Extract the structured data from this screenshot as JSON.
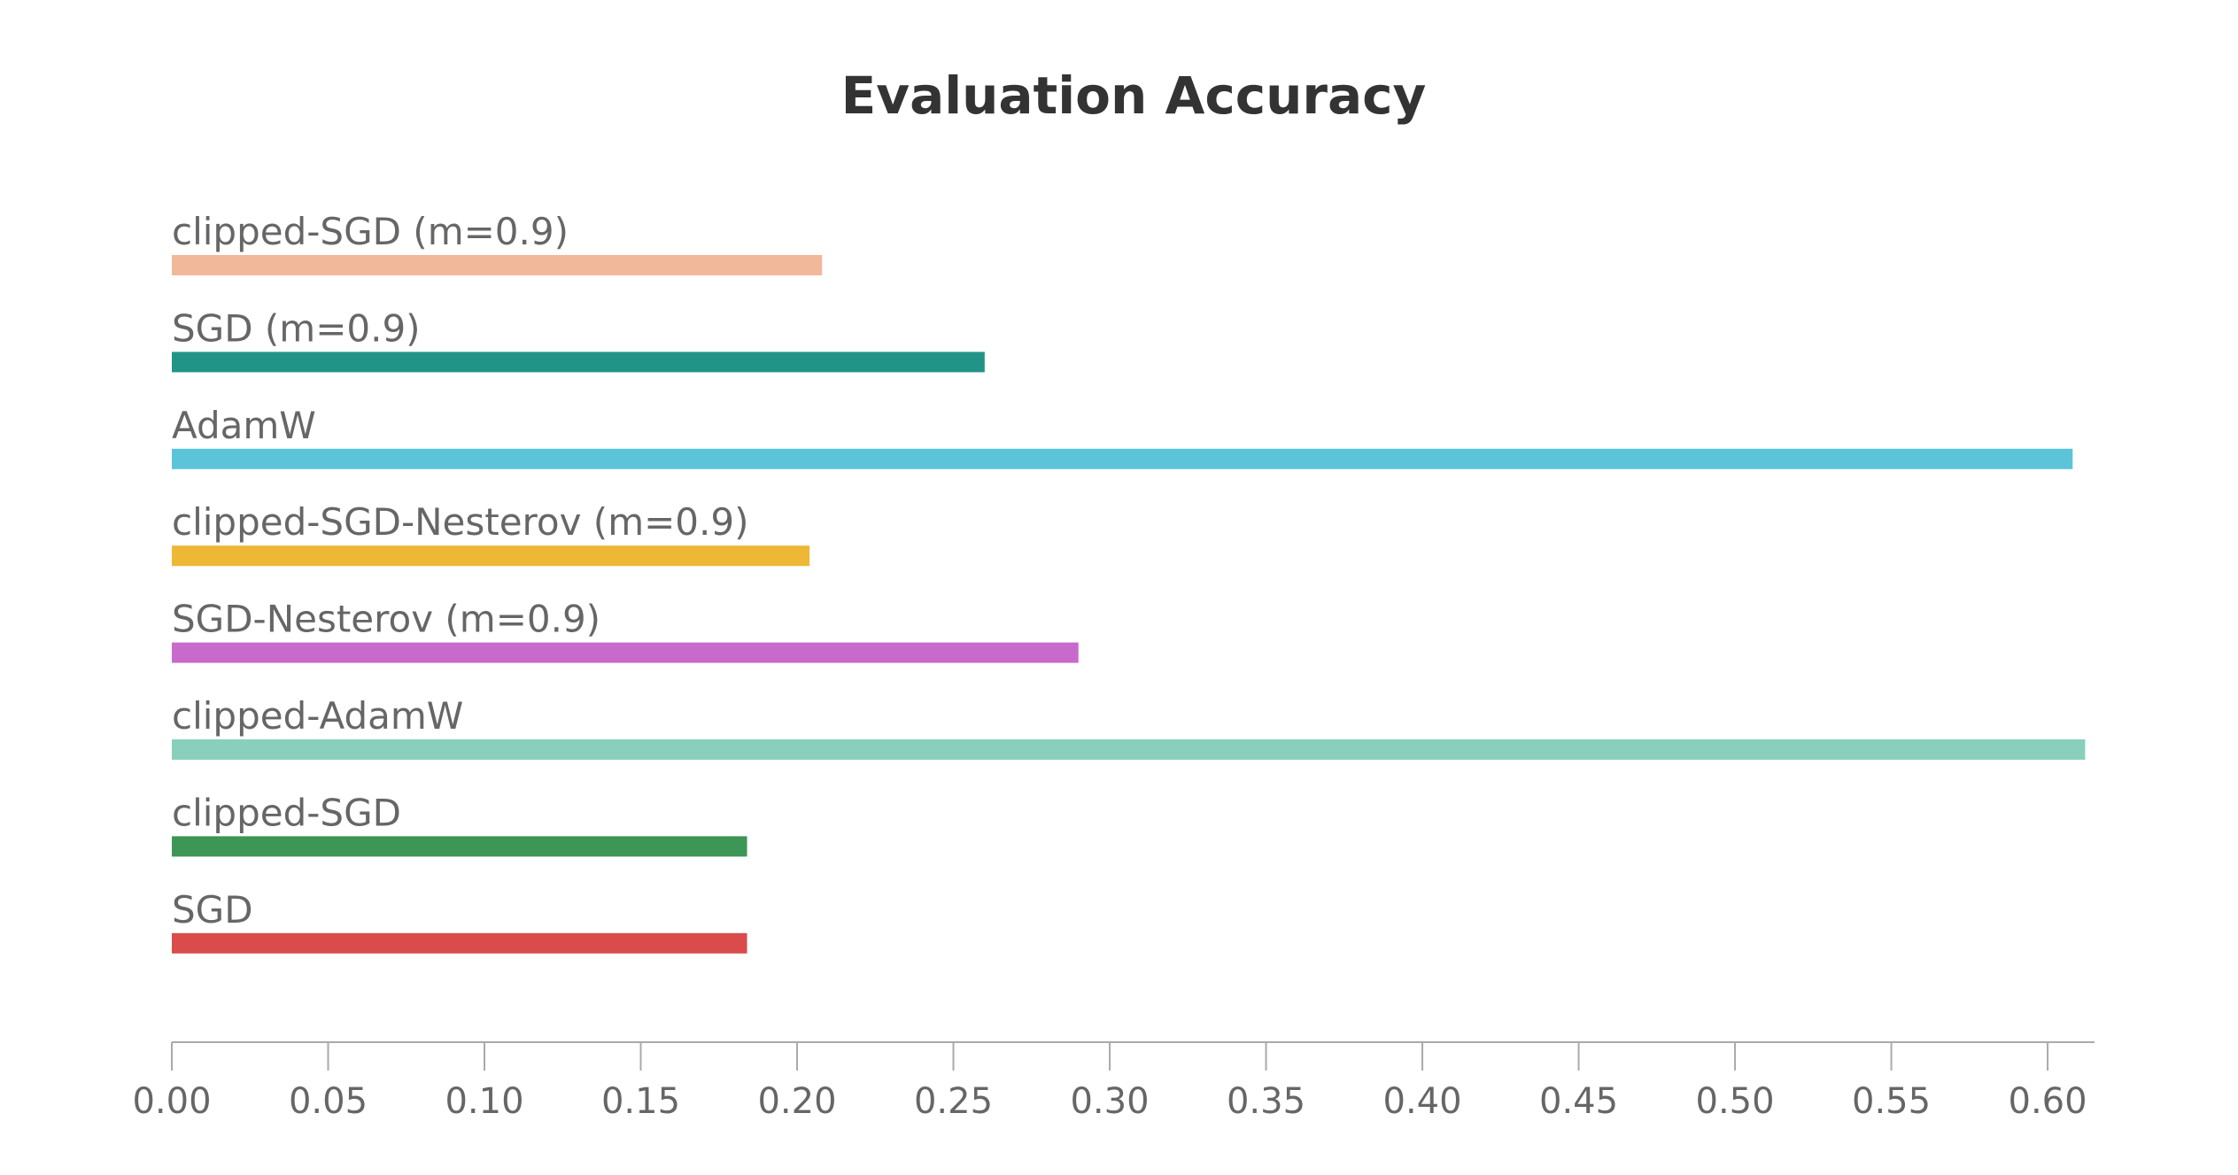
{
  "chart_data": {
    "type": "bar",
    "orientation": "horizontal",
    "title": "Evaluation Accuracy",
    "xlabel": "",
    "ylabel": "",
    "xlim": [
      0,
      0.615
    ],
    "grid": false,
    "legend": "none",
    "ticks": [
      "0.00",
      "0.05",
      "0.10",
      "0.15",
      "0.20",
      "0.25",
      "0.30",
      "0.35",
      "0.40",
      "0.45",
      "0.50",
      "0.55",
      "0.60"
    ],
    "tick_values": [
      0,
      0.05,
      0.1,
      0.15,
      0.2,
      0.25,
      0.3,
      0.35,
      0.4,
      0.45,
      0.5,
      0.55,
      0.6
    ],
    "bars": [
      {
        "label": "clipped-SGD (m=0.9)",
        "value": 0.208,
        "color": "#f2b89a"
      },
      {
        "label": "SGD (m=0.9)",
        "value": 0.26,
        "color": "#229487"
      },
      {
        "label": "AdamW",
        "value": 0.608,
        "color": "#5bc4d8"
      },
      {
        "label": "clipped-SGD-Nesterov (m=0.9)",
        "value": 0.204,
        "color": "#eeb735"
      },
      {
        "label": "SGD-Nesterov (m=0.9)",
        "value": 0.29,
        "color": "#c86acb"
      },
      {
        "label": "clipped-AdamW",
        "value": 0.612,
        "color": "#88d0bc"
      },
      {
        "label": "clipped-SGD",
        "value": 0.184,
        "color": "#3d9656"
      },
      {
        "label": "SGD",
        "value": 0.184,
        "color": "#da4b4b"
      }
    ]
  }
}
